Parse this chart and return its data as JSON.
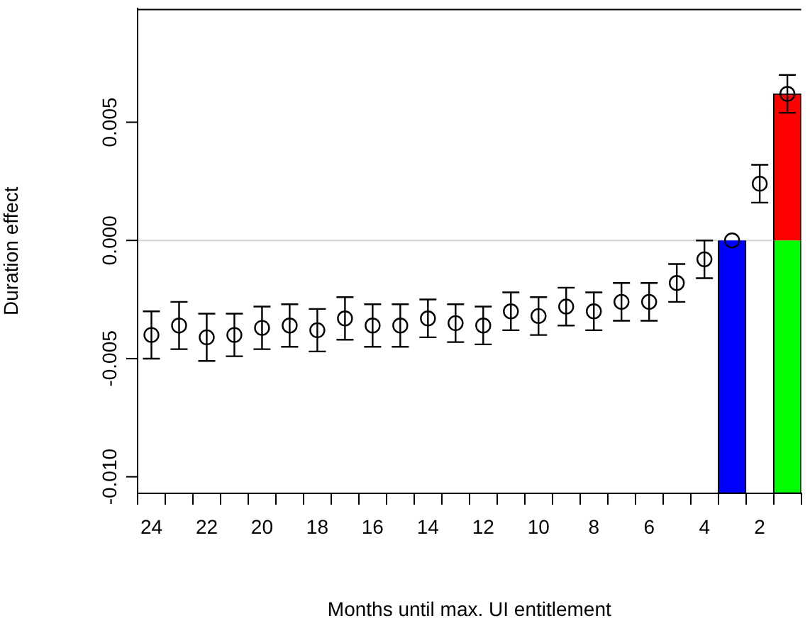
{
  "chart_data": {
    "type": "bar",
    "xlabel": "Months until max. UI entitlement",
    "ylabel": "Duration effect",
    "categories": [
      "24",
      null,
      "22",
      null,
      "20",
      null,
      "18",
      null,
      "16",
      null,
      "14",
      null,
      "12",
      null,
      "10",
      null,
      "8",
      null,
      "6",
      null,
      "4",
      null,
      "2",
      null
    ],
    "stacked": true,
    "ylim": [
      -0.0107,
      0.0098
    ],
    "yticks": [
      {
        "value": -0.01,
        "label": "-0.010"
      },
      {
        "value": -0.005,
        "label": "-0.005"
      },
      {
        "value": 0,
        "label": "0.000"
      },
      {
        "value": 0.005,
        "label": "0.005"
      }
    ],
    "ref_lines": [
      {
        "axis": "y",
        "value": 0,
        "color": "#d3d3d3"
      }
    ],
    "series": [
      {
        "color": "#0000ff",
        "values": [
          null,
          null,
          null,
          null,
          null,
          null,
          null,
          null,
          null,
          null,
          null,
          null,
          null,
          null,
          null,
          null,
          null,
          null,
          null,
          null,
          null,
          -0.0107,
          null,
          null
        ]
      },
      {
        "color": "#ff0000",
        "values": [
          null,
          null,
          null,
          null,
          null,
          null,
          null,
          null,
          null,
          null,
          null,
          null,
          null,
          null,
          null,
          null,
          null,
          null,
          null,
          null,
          null,
          null,
          null,
          0.0062
        ]
      },
      {
        "color": "#00ff00",
        "values": [
          null,
          null,
          null,
          null,
          null,
          null,
          null,
          null,
          null,
          null,
          null,
          null,
          null,
          null,
          null,
          null,
          null,
          null,
          null,
          null,
          null,
          null,
          null,
          -0.0107
        ]
      },
      {
        "type": "scatter",
        "color": "#000000",
        "marker": "circle",
        "values": [
          -0.004,
          -0.0036,
          -0.0041,
          -0.004,
          -0.0037,
          -0.0036,
          -0.0038,
          -0.0033,
          -0.0036,
          -0.0036,
          -0.0033,
          -0.0035,
          -0.0036,
          -0.003,
          -0.0032,
          -0.0028,
          -0.003,
          -0.0026,
          -0.0026,
          -0.0018,
          -0.0008,
          0.0,
          0.0024,
          0.0062
        ],
        "errors": [
          0.001,
          0.001,
          0.001,
          0.0009,
          0.0009,
          0.0009,
          0.0009,
          0.0009,
          0.0009,
          0.0009,
          0.0008,
          0.0008,
          0.0008,
          0.0008,
          0.0008,
          0.0008,
          0.0008,
          0.0008,
          0.0008,
          0.0008,
          0.0008,
          null,
          0.0008,
          0.0008
        ]
      }
    ]
  }
}
